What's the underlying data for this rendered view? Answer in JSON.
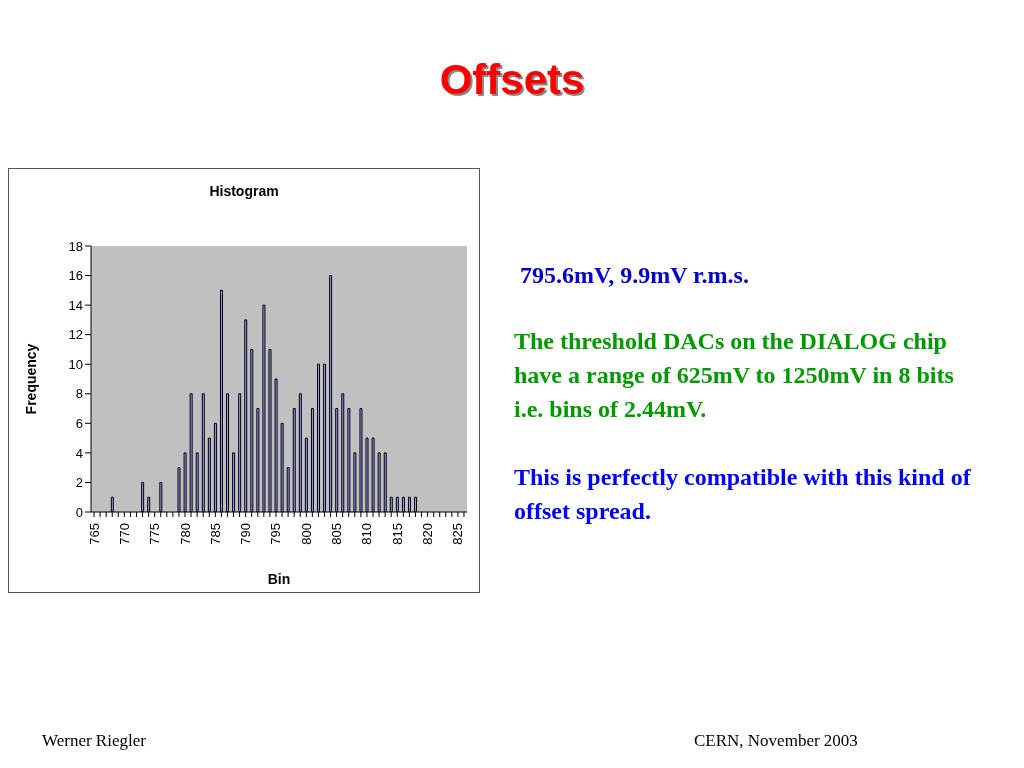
{
  "chart_data": {
    "type": "bar",
    "title": "Offsets",
    "subtitle": "Histogram",
    "xlabel": "Bin",
    "ylabel": "Frequency",
    "categories": [
      "765",
      null,
      null,
      null,
      null,
      "770",
      null,
      null,
      null,
      null,
      "775",
      null,
      null,
      null,
      null,
      "780",
      null,
      null,
      null,
      null,
      "785",
      null,
      null,
      null,
      null,
      "790",
      null,
      null,
      null,
      null,
      "795",
      null,
      null,
      null,
      null,
      "800",
      null,
      null,
      null,
      null,
      "805",
      null,
      null,
      null,
      null,
      "810",
      null,
      null,
      null,
      null,
      "815",
      null,
      null,
      null,
      null,
      "820",
      null,
      null,
      null,
      null,
      "825",
      null
    ],
    "values": [
      0,
      0,
      0,
      1,
      0,
      0,
      0,
      0,
      2,
      1,
      0,
      2,
      0,
      0,
      3,
      4,
      8,
      4,
      8,
      5,
      6,
      15,
      8,
      4,
      8,
      13,
      11,
      7,
      14,
      11,
      9,
      6,
      3,
      7,
      8,
      5,
      7,
      10,
      10,
      16,
      7,
      8,
      7,
      4,
      7,
      5,
      5,
      4,
      4,
      1,
      1,
      1,
      1,
      1,
      0,
      0,
      0,
      0,
      0,
      0,
      0,
      0
    ],
    "color": "#9999ff",
    "ylim": [
      0,
      18
    ],
    "yticks": [
      0,
      2,
      4,
      6,
      8,
      10,
      12,
      14,
      16,
      18
    ],
    "grid": false,
    "annotations": [
      "795.6mV,  9.9mV r.m.s.",
      "The threshold DACs on the DIALOG chip have a range of 625mV to 1250mV in 8 bits i.e. bins of 2.44mV.",
      "This is perfectly compatible with this kind of offset spread.",
      "Werner Riegler",
      "CERN, November 2003"
    ]
  }
}
